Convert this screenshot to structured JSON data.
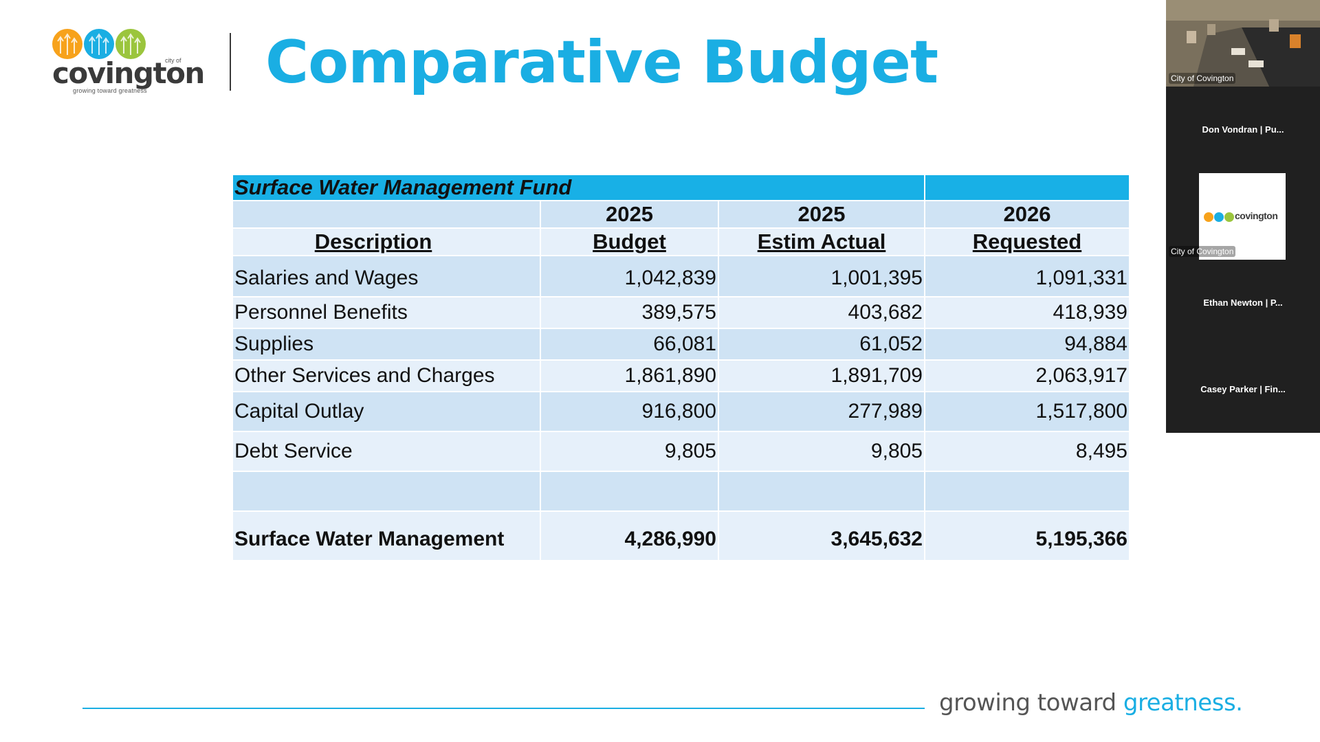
{
  "slide": {
    "logo": {
      "word": "covington",
      "city_of": "city of",
      "tagline": "growing toward greatness",
      "colors": [
        "#f7a21b",
        "#1aaee3",
        "#9bc53d"
      ]
    },
    "title": "Comparative Budget",
    "table": {
      "fund_title": "Surface Water Management Fund",
      "year_row": [
        "",
        "2025",
        "2025",
        "2026"
      ],
      "headers": [
        "Description",
        "Budget",
        "Estim Actual",
        "Requested"
      ],
      "rows": [
        {
          "label": "Salaries and Wages",
          "budget": "1,042,839",
          "estim_actual": "1,001,395",
          "requested": "1,091,331"
        },
        {
          "label": "Personnel Benefits",
          "budget": "389,575",
          "estim_actual": "403,682",
          "requested": "418,939"
        },
        {
          "label": "Supplies",
          "budget": "66,081",
          "estim_actual": "61,052",
          "requested": "94,884"
        },
        {
          "label": "Other Services and Charges",
          "budget": "1,861,890",
          "estim_actual": "1,891,709",
          "requested": "2,063,917"
        },
        {
          "label": "Capital Outlay",
          "budget": "916,800",
          "estim_actual": "277,989",
          "requested": "1,517,800"
        },
        {
          "label": "Debt Service",
          "budget": "9,805",
          "estim_actual": "9,805",
          "requested": "8,495"
        }
      ],
      "total": {
        "label": "Surface Water Management",
        "budget": "4,286,990",
        "estim_actual": "3,645,632",
        "requested": "5,195,366"
      }
    },
    "footer": {
      "tagline_part1": "growing toward ",
      "tagline_part2": "greatness."
    },
    "accent_color": "#1aaee3",
    "header_band_color": "#18b0e6"
  },
  "participants": [
    {
      "name": "City of Covington",
      "kind": "video"
    },
    {
      "name": "Don Vondran | Pu...",
      "kind": "name-only"
    },
    {
      "name": "City of Covington",
      "kind": "logo"
    },
    {
      "name": "Ethan Newton | P...",
      "kind": "name-only"
    },
    {
      "name": "Casey Parker | Fin...",
      "kind": "name-only"
    }
  ]
}
